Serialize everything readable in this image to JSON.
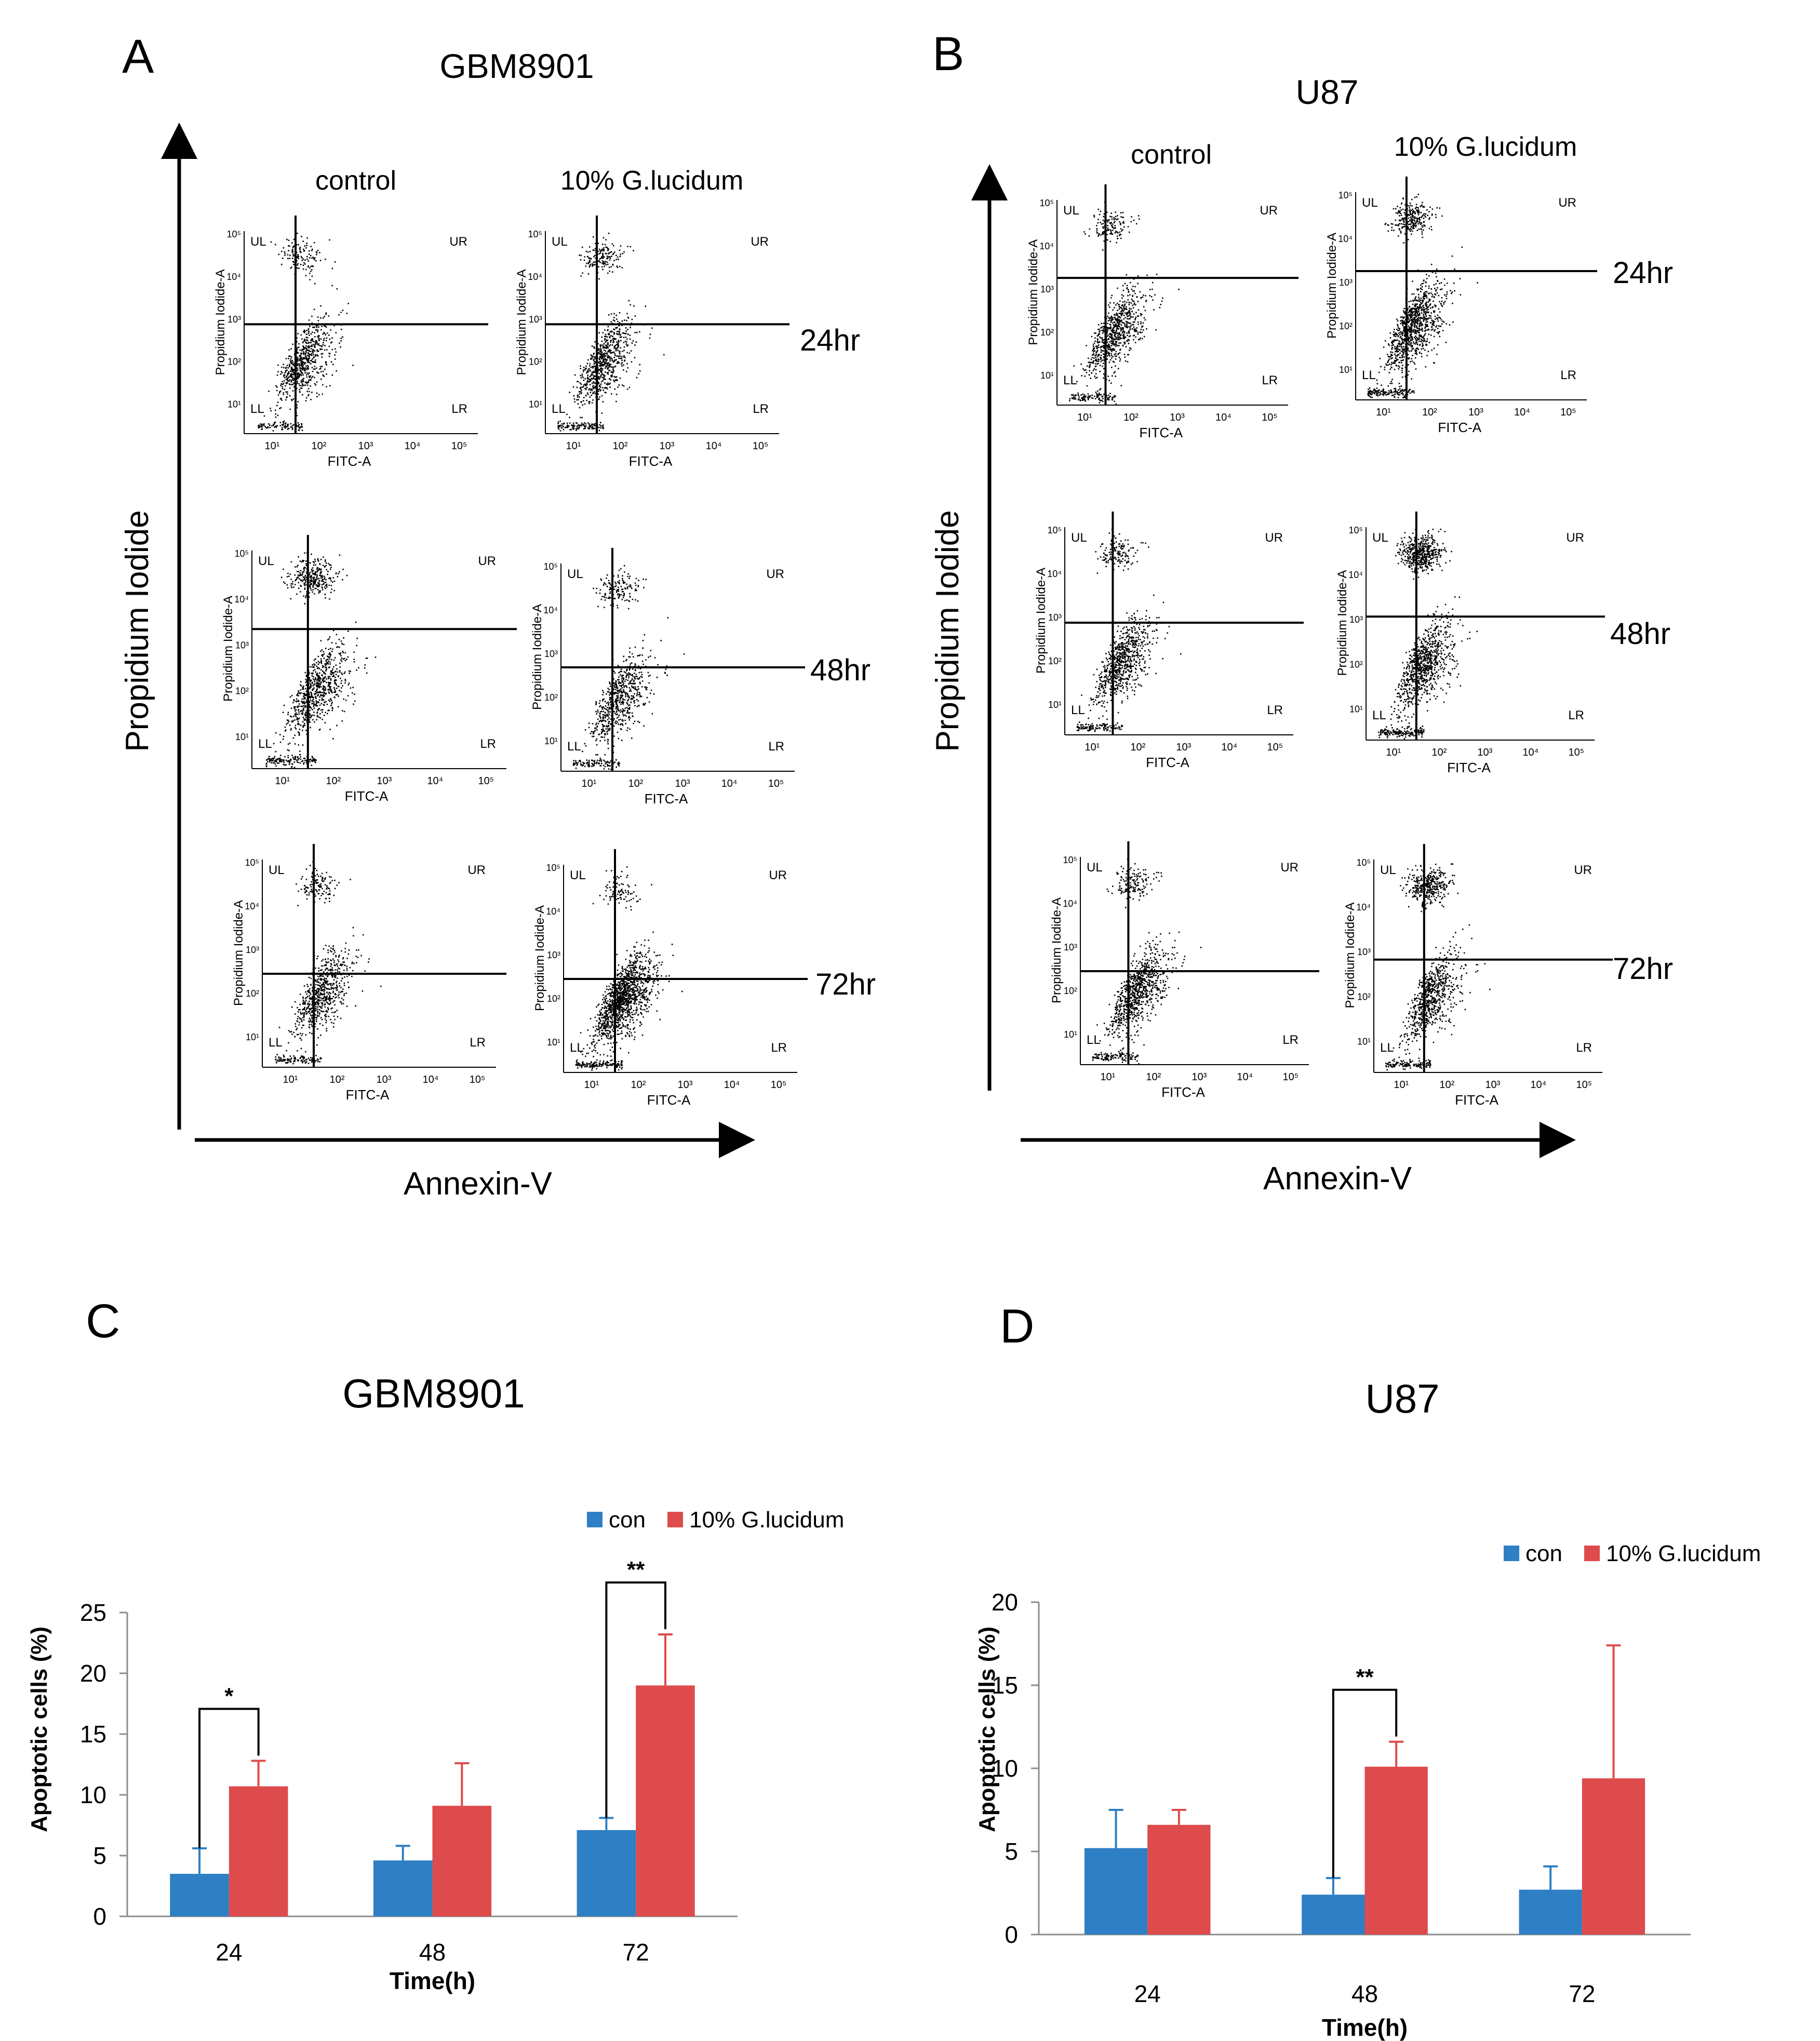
{
  "panel_letters": {
    "A": "A",
    "B": "B",
    "C": "C",
    "D": "D"
  },
  "flow": {
    "time_labels": [
      "24hr",
      "48hr",
      "72hr"
    ],
    "quadrant_labels": {
      "ul": "UL",
      "ur": "UR",
      "ll": "LL",
      "lr": "LR"
    },
    "axis_x_inner": "FITC-A",
    "axis_y_inner": "Propidium Iodide-A",
    "x_ticks": [
      "10¹",
      "10²",
      "10³",
      "10⁴",
      "10⁵"
    ],
    "y_ticks": [
      "10⁵",
      "10⁴",
      "10³",
      "10²",
      "10¹"
    ],
    "x_outer": "Annexin-V",
    "y_outer": "Propidium  Iodide",
    "col_control": "control",
    "col_treated": "10% G.lucidum",
    "panel_A_title": "GBM8901",
    "panel_B_title": "U87"
  },
  "colors": {
    "con": "#2e7fc4",
    "treated": "#dd4b4d",
    "axis": "#000000",
    "bar_axis": "#8c8c8c"
  },
  "chart_data": [
    {
      "type": "bar",
      "panel": "C",
      "title": "GBM8901",
      "xlabel": "Time(h)",
      "ylabel": "Apoptotic cells (%)",
      "categories": [
        "24",
        "48",
        "72"
      ],
      "ylim": [
        0,
        25
      ],
      "yticks": [
        "0",
        "5",
        "10",
        "15",
        "20",
        "25"
      ],
      "series": [
        {
          "name": "con",
          "values": [
            3.5,
            4.6,
            7.1
          ],
          "errors": [
            2.1,
            1.2,
            1.0
          ]
        },
        {
          "name": "10% G.lucidum",
          "values": [
            10.7,
            9.1,
            19.0
          ],
          "errors": [
            2.1,
            3.5,
            4.2
          ]
        }
      ],
      "significance": [
        {
          "category": "24",
          "label": "*"
        },
        {
          "category": "72",
          "label": "**"
        }
      ]
    },
    {
      "type": "bar",
      "panel": "D",
      "title": "U87",
      "xlabel": "Time(h)",
      "ylabel": "Apoptotic cells (%)",
      "categories": [
        "24",
        "48",
        "72"
      ],
      "ylim": [
        0,
        20
      ],
      "yticks": [
        "0",
        "5",
        "10",
        "15",
        "20"
      ],
      "series": [
        {
          "name": "con",
          "values": [
            5.2,
            2.4,
            2.7
          ],
          "errors": [
            2.3,
            1.0,
            1.4
          ]
        },
        {
          "name": "10% G.lucidum",
          "values": [
            6.6,
            10.1,
            9.4
          ],
          "errors": [
            0.9,
            1.5,
            8.0
          ]
        }
      ],
      "significance": [
        {
          "category": "48",
          "label": "**"
        }
      ]
    }
  ]
}
